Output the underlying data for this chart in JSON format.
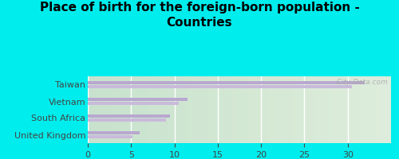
{
  "title": "Place of birth for the foreign-born population -\nCountries",
  "categories": [
    "Taiwan",
    "Vietnam",
    "South Africa",
    "United Kingdom"
  ],
  "values1": [
    32,
    11.5,
    9.5,
    6.0
  ],
  "values2": [
    30.5,
    10.5,
    9.0,
    5.2
  ],
  "bar_color1": "#b8a8cf",
  "bar_color2": "#c9bada",
  "bg_outer": "#00eded",
  "bg_plot_top": "#e8f0e8",
  "bg_plot_bottom": "#d8ecd8",
  "xlim": [
    0,
    35
  ],
  "xticks": [
    0,
    5,
    10,
    15,
    20,
    25,
    30
  ],
  "watermark": "  City-Data.com",
  "title_fontsize": 11,
  "tick_fontsize": 8,
  "label_fontsize": 8
}
